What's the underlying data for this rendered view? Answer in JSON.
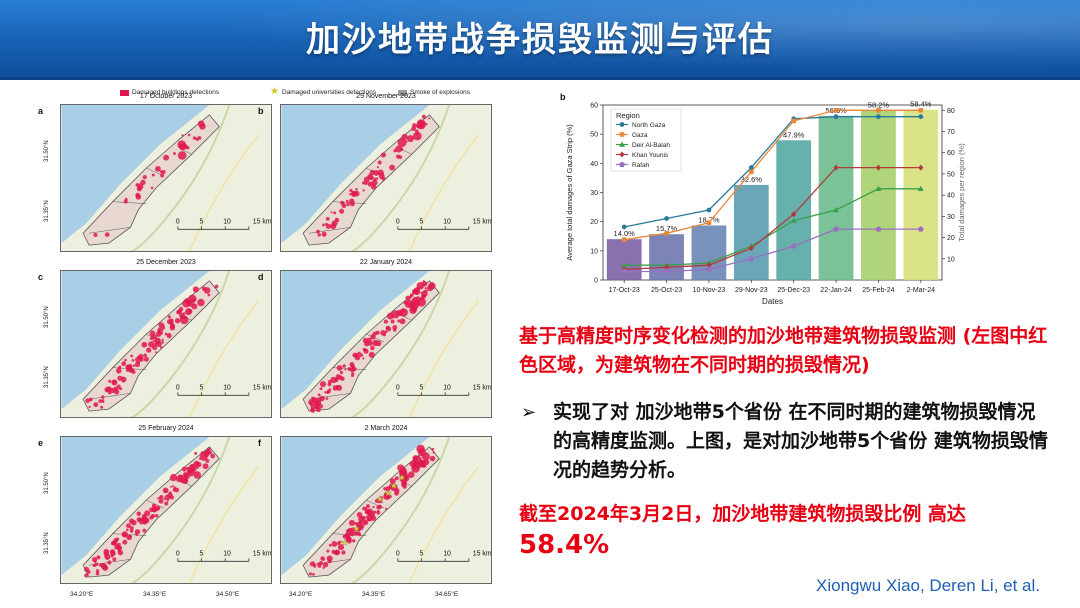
{
  "slide": {
    "title": "加沙地带战争损毁监测与评估",
    "red_note": "基于高精度时序变化检测的加沙地带建筑物损毁监测 (左图中红色区域，为建筑物在不同时期的损毁情况)",
    "bullet_icon": "arrow-bullet-icon",
    "bullet_text": "实现了对 加沙地带5个省份 在不同时期的建筑物损毁情况 的高精度监测。上图，是对加沙地带5个省份 建筑物损毁情况的趋势分析。",
    "conclusion_line1": "截至2024年3月2日，加沙地带建筑物损毁比例 高达",
    "conclusion_line2": "58.4%",
    "credit": "Xiongwu Xiao, Deren Li, et al."
  },
  "maps": {
    "legend": {
      "damaged_buildings": "Damaged buildings detections",
      "damaged_universities": "Damaged universities detections",
      "smoke": "Smoke of explosions"
    },
    "panels": [
      {
        "letter": "a",
        "date": "17 October 2023",
        "damage": 0.14
      },
      {
        "letter": "b",
        "date": "29 November 2023",
        "damage": 0.326
      },
      {
        "letter": "c",
        "date": "25 December 2023",
        "damage": 0.479
      },
      {
        "letter": "d",
        "date": "22 January 2024",
        "damage": 0.563
      },
      {
        "letter": "e",
        "date": "25 February 2024",
        "damage": 0.582
      },
      {
        "letter": "f",
        "date": "2 March 2024",
        "damage": 0.584
      }
    ],
    "lat_labels": [
      "31.50°N",
      "31.35°N"
    ],
    "lon_labels": [
      "34.20°E",
      "34.35°E",
      "34.50°E",
      "34.65°E"
    ],
    "scale_labels": [
      "0",
      "5",
      "10",
      "15 km"
    ],
    "colors": {
      "sea": "#a9cfe6",
      "land": "#eef0df",
      "border": "#555555",
      "damage": "#e0194d"
    }
  },
  "chart_data": {
    "type": "bar",
    "panel_label": "b",
    "xlabel": "Dates",
    "ylabel": "Average total damages of Gaza Strip (%)",
    "y2label": "Total damages per region (%)",
    "categories": [
      "17-Oct-23",
      "25-Oct-23",
      "10-Nov-23",
      "29-Nov-23",
      "25-Dec-23",
      "22-Jan-24",
      "25-Feb-24",
      "2-Mar-24"
    ],
    "bar_values": [
      14.0,
      15.7,
      18.7,
      32.6,
      47.9,
      56.3,
      58.2,
      58.4
    ],
    "bar_labels": [
      "14.0%",
      "15.7%",
      "18.7%",
      "32.6%",
      "47.9%",
      "56.3%",
      "58.2%",
      "58.4%"
    ],
    "bar_colors": [
      "#7b62a3",
      "#6f77b0",
      "#6a86b4",
      "#5b9bb0",
      "#56a9a3",
      "#6cbd8e",
      "#a6cf6a",
      "#d6e07a"
    ],
    "ylim": [
      0,
      60
    ],
    "y2lim": [
      0,
      82.5
    ],
    "yticks": [
      0,
      10,
      20,
      30,
      40,
      50,
      60
    ],
    "y2ticks": [
      10,
      20,
      30,
      40,
      50,
      60,
      70,
      80
    ],
    "legend_title": "Region",
    "legend_position": "top-left",
    "series": [
      {
        "name": "North Gaza",
        "color": "#2a7b9b",
        "marker": "circle",
        "values": [
          25,
          29,
          33,
          53,
          76,
          77,
          77,
          77
        ]
      },
      {
        "name": "Gaza",
        "color": "#e8883a",
        "marker": "square",
        "values": [
          19,
          22,
          27,
          51,
          75,
          80,
          80,
          80
        ]
      },
      {
        "name": "Deir Al-Balah",
        "color": "#3aa04a",
        "marker": "triangle",
        "values": [
          7,
          7,
          8,
          16,
          28,
          33,
          43,
          43
        ]
      },
      {
        "name": "Khan Younis",
        "color": "#b23a3a",
        "marker": "diamond",
        "values": [
          5,
          6,
          7,
          15,
          31,
          53,
          53,
          53
        ]
      },
      {
        "name": "Rafah",
        "color": "#9a6fc0",
        "marker": "pentagon",
        "values": [
          4,
          4,
          5,
          10,
          16,
          24,
          24,
          24
        ]
      }
    ]
  }
}
